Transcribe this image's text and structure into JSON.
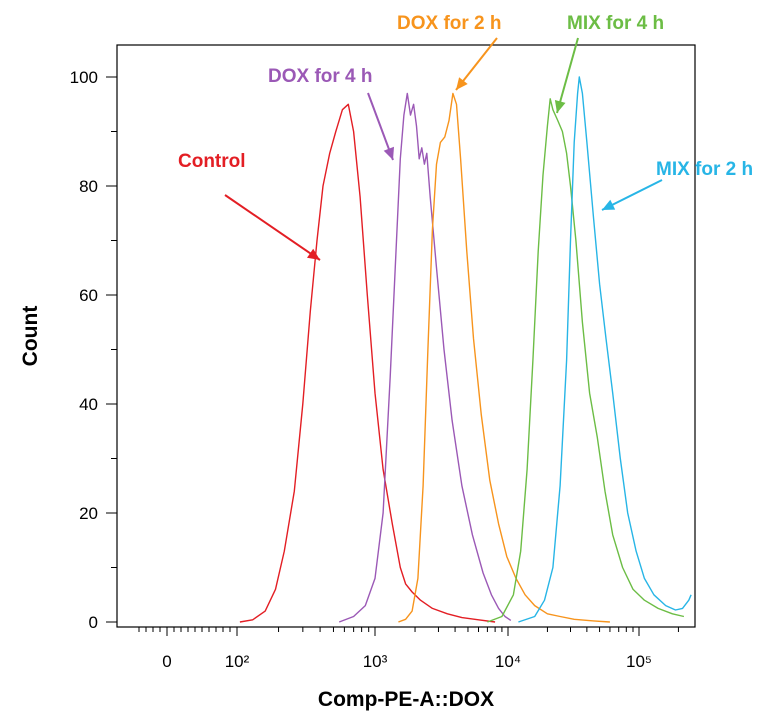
{
  "chart_data": {
    "type": "line",
    "title": "",
    "xlabel": "Comp-PE-A::DOX",
    "ylabel": "Count",
    "x_scale": "biexponential",
    "xlim": [
      -40,
      250000
    ],
    "ylim": [
      0,
      105
    ],
    "grid": false,
    "legend": "none",
    "x_ticks": [
      {
        "value": 0,
        "label": "0"
      },
      {
        "value": 100,
        "label": "10²"
      },
      {
        "value": 1000,
        "label": "10³"
      },
      {
        "value": 10000,
        "label": "10⁴"
      },
      {
        "value": 100000,
        "label": "10⁵"
      }
    ],
    "y_ticks": [
      {
        "value": 0,
        "label": "0"
      },
      {
        "value": 20,
        "label": "20"
      },
      {
        "value": 40,
        "label": "40"
      },
      {
        "value": 60,
        "label": "60"
      },
      {
        "value": 80,
        "label": "80"
      },
      {
        "value": 100,
        "label": "100"
      }
    ],
    "series": [
      {
        "name": "Control",
        "color": "#e31e24",
        "points": [
          [
            105,
            0
          ],
          [
            130,
            0.4
          ],
          [
            160,
            2
          ],
          [
            190,
            6
          ],
          [
            220,
            13
          ],
          [
            260,
            24
          ],
          [
            300,
            40
          ],
          [
            340,
            57
          ],
          [
            380,
            70
          ],
          [
            420,
            80
          ],
          [
            470,
            86
          ],
          [
            520,
            90
          ],
          [
            580,
            94
          ],
          [
            640,
            95
          ],
          [
            700,
            90
          ],
          [
            780,
            78
          ],
          [
            880,
            60
          ],
          [
            1000,
            42
          ],
          [
            1150,
            28
          ],
          [
            1350,
            18
          ],
          [
            1550,
            10
          ],
          [
            1700,
            7
          ],
          [
            1900,
            5.5
          ],
          [
            2200,
            4
          ],
          [
            2700,
            2.5
          ],
          [
            3500,
            1.5
          ],
          [
            4500,
            0.8
          ],
          [
            6000,
            0.4
          ],
          [
            8000,
            0
          ]
        ]
      },
      {
        "name": "DOX for 4 h",
        "color": "#9b59b6",
        "points": [
          [
            550,
            0
          ],
          [
            700,
            1
          ],
          [
            850,
            3
          ],
          [
            1000,
            8
          ],
          [
            1150,
            20
          ],
          [
            1300,
            45
          ],
          [
            1450,
            70
          ],
          [
            1550,
            85
          ],
          [
            1650,
            93
          ],
          [
            1750,
            97
          ],
          [
            1850,
            93
          ],
          [
            1950,
            95
          ],
          [
            2050,
            91
          ],
          [
            2150,
            85
          ],
          [
            2250,
            87
          ],
          [
            2350,
            84
          ],
          [
            2450,
            86
          ],
          [
            2600,
            78
          ],
          [
            2900,
            65
          ],
          [
            3300,
            50
          ],
          [
            3800,
            37
          ],
          [
            4500,
            25
          ],
          [
            5400,
            16
          ],
          [
            6500,
            9
          ],
          [
            7500,
            5
          ],
          [
            8500,
            2.5
          ],
          [
            9500,
            1
          ],
          [
            10500,
            0.3
          ]
        ]
      },
      {
        "name": "DOX for 2 h",
        "color": "#f7941d",
        "points": [
          [
            1500,
            0
          ],
          [
            1700,
            0.5
          ],
          [
            1900,
            2
          ],
          [
            2100,
            8
          ],
          [
            2300,
            25
          ],
          [
            2500,
            50
          ],
          [
            2700,
            72
          ],
          [
            2900,
            84
          ],
          [
            3100,
            88
          ],
          [
            3350,
            89
          ],
          [
            3600,
            92
          ],
          [
            3850,
            97
          ],
          [
            4100,
            95
          ],
          [
            4400,
            85
          ],
          [
            4900,
            68
          ],
          [
            5500,
            52
          ],
          [
            6300,
            38
          ],
          [
            7300,
            26
          ],
          [
            8500,
            18
          ],
          [
            9800,
            12
          ],
          [
            11500,
            8
          ],
          [
            13500,
            5
          ],
          [
            16000,
            3
          ],
          [
            20000,
            1.5
          ],
          [
            25000,
            1
          ],
          [
            32000,
            0.5
          ],
          [
            45000,
            0.2
          ],
          [
            60000,
            0
          ]
        ]
      },
      {
        "name": "MIX for 4 h",
        "color": "#6cbd45",
        "points": [
          [
            7000,
            0
          ],
          [
            9000,
            1
          ],
          [
            11000,
            5
          ],
          [
            12500,
            13
          ],
          [
            14000,
            28
          ],
          [
            15500,
            48
          ],
          [
            17000,
            68
          ],
          [
            18500,
            82
          ],
          [
            20000,
            91
          ],
          [
            21000,
            96
          ],
          [
            22000,
            94
          ],
          [
            24000,
            92
          ],
          [
            26000,
            90
          ],
          [
            28000,
            86
          ],
          [
            30000,
            80
          ],
          [
            33000,
            70
          ],
          [
            37000,
            55
          ],
          [
            42000,
            42
          ],
          [
            48000,
            34
          ],
          [
            55000,
            24
          ],
          [
            63000,
            16
          ],
          [
            75000,
            10
          ],
          [
            90000,
            6
          ],
          [
            110000,
            4
          ],
          [
            140000,
            2.5
          ],
          [
            180000,
            1.5
          ],
          [
            220000,
            1
          ]
        ]
      },
      {
        "name": "MIX for 2 h",
        "color": "#27b5e6",
        "points": [
          [
            12000,
            0
          ],
          [
            16000,
            1
          ],
          [
            19000,
            4
          ],
          [
            22000,
            10
          ],
          [
            25000,
            25
          ],
          [
            28000,
            48
          ],
          [
            30000,
            70
          ],
          [
            32000,
            88
          ],
          [
            34000,
            97
          ],
          [
            35000,
            100
          ],
          [
            37000,
            97
          ],
          [
            40000,
            88
          ],
          [
            45000,
            74
          ],
          [
            50000,
            62
          ],
          [
            56000,
            52
          ],
          [
            63000,
            42
          ],
          [
            72000,
            30
          ],
          [
            82000,
            20
          ],
          [
            95000,
            13
          ],
          [
            110000,
            8
          ],
          [
            130000,
            5
          ],
          [
            160000,
            3
          ],
          [
            190000,
            2.2
          ],
          [
            215000,
            2.5
          ],
          [
            240000,
            4
          ],
          [
            250000,
            5
          ]
        ]
      }
    ],
    "annotations": [
      {
        "text": "Control",
        "color": "#e31e24"
      },
      {
        "text": "DOX for 4 h",
        "color": "#9b59b6"
      },
      {
        "text": "DOX for 2 h",
        "color": "#f7941d"
      },
      {
        "text": "MIX for 4 h",
        "color": "#6cbd45"
      },
      {
        "text": "MIX for 2 h",
        "color": "#27b5e6"
      }
    ]
  }
}
